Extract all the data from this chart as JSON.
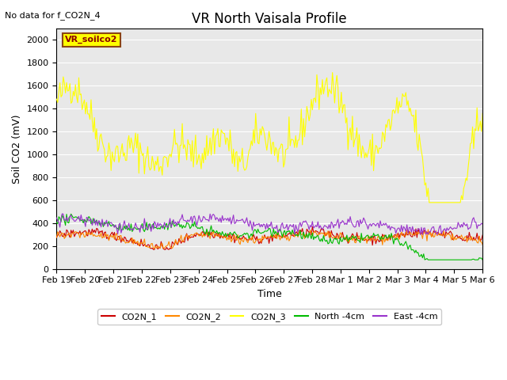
{
  "title": "VR North Vaisala Profile",
  "subtitle": "No data for f_CO2N_4",
  "ylabel": "Soil CO2 (mV)",
  "xlabel": "Time",
  "ylim": [
    0,
    2100
  ],
  "background_color": "#e8e8e8",
  "legend_label": "VR_soilco2",
  "date_labels": [
    "Feb 19",
    "Feb 20",
    "Feb 21",
    "Feb 22",
    "Feb 23",
    "Feb 24",
    "Feb 25",
    "Feb 26",
    "Feb 27",
    "Feb 28",
    "Mar 1",
    "Mar 2",
    "Mar 3",
    "Mar 4",
    "Mar 5",
    "Mar 6"
  ],
  "series_colors": {
    "CO2N_1": "#cc0000",
    "CO2N_2": "#ff8800",
    "CO2N_3": "#ffff00",
    "North_4cm": "#00bb00",
    "East_4cm": "#9933cc"
  },
  "legend_entries": [
    "CO2N_1",
    "CO2N_2",
    "CO2N_3",
    "North -4cm",
    "East -4cm"
  ]
}
